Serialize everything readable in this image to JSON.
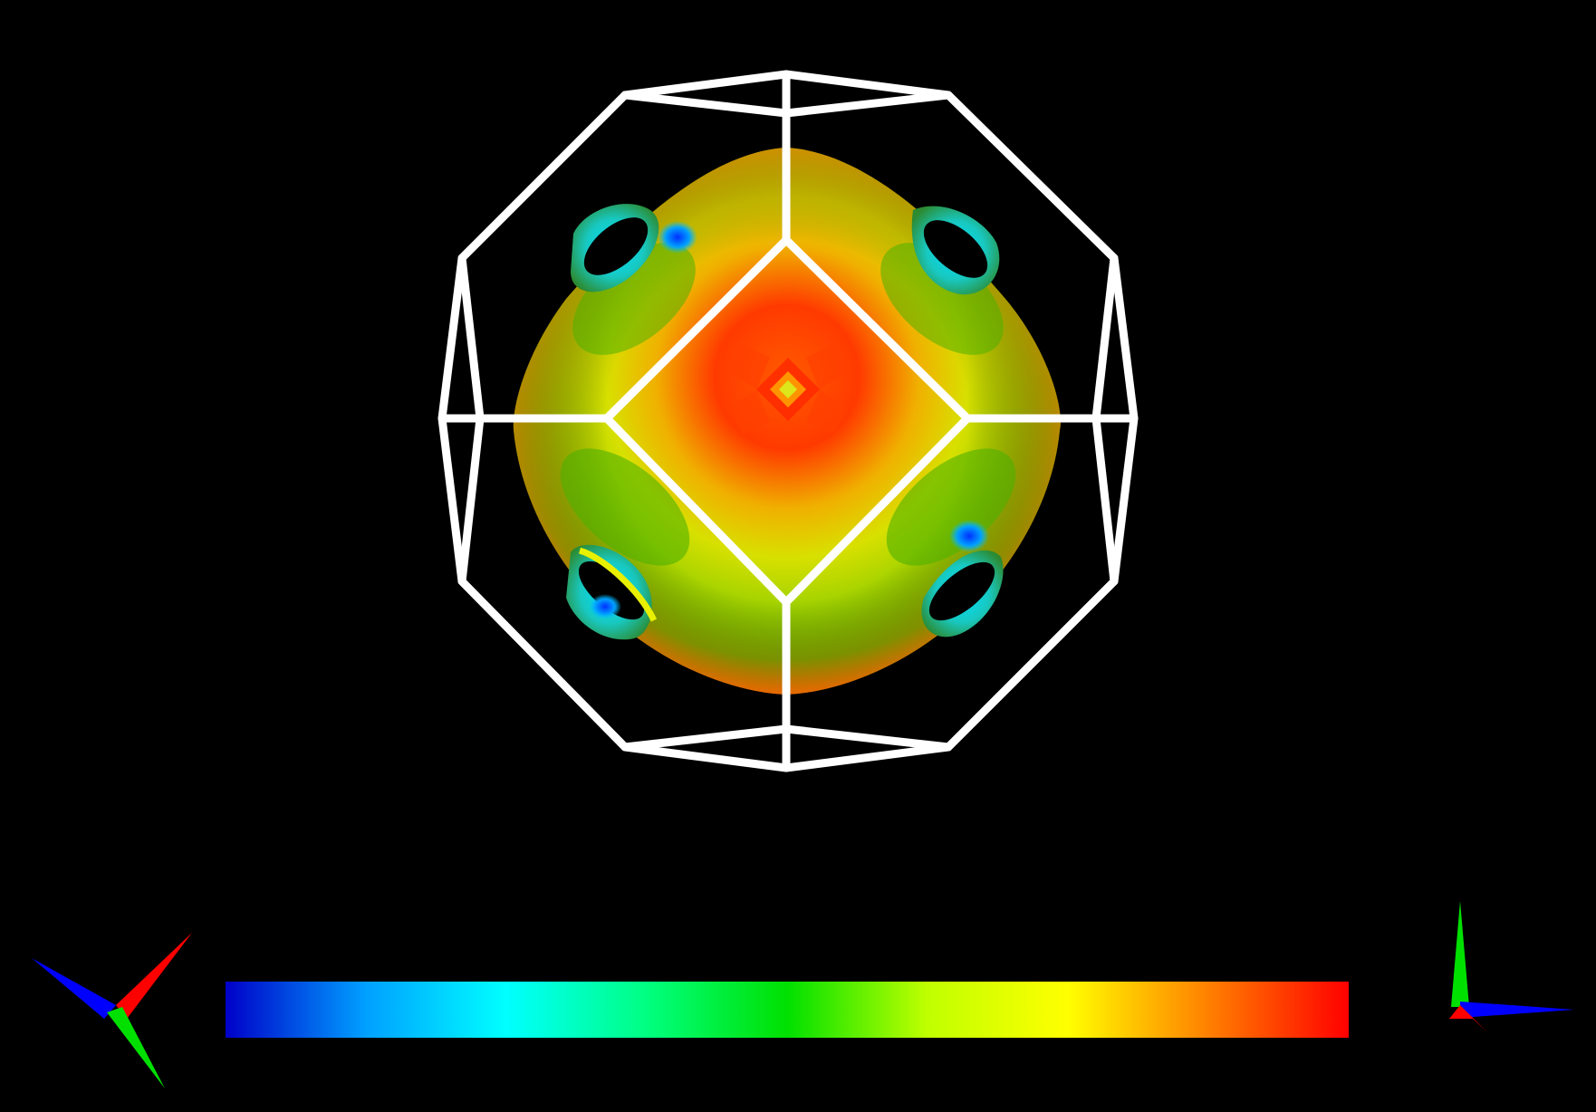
{
  "scene": {
    "background": "#000000",
    "frame_color": "#ffffff",
    "surface_palette": [
      "#0000ff",
      "#00ffff",
      "#00ff00",
      "#ffff00",
      "#ff0000"
    ],
    "icons": {
      "left_axes": "axes-triad-icon",
      "right_axes": "axes-triad-icon"
    },
    "axis_colors": {
      "a": "#ff0000",
      "b": "#00ff00",
      "c": "#0000ff"
    }
  },
  "colorbar": {
    "stops": [
      "#0000c8",
      "#00a0ff",
      "#00ffff",
      "#00ff80",
      "#00e000",
      "#c0ff00",
      "#ffff00",
      "#ff8000",
      "#ff0000"
    ]
  }
}
